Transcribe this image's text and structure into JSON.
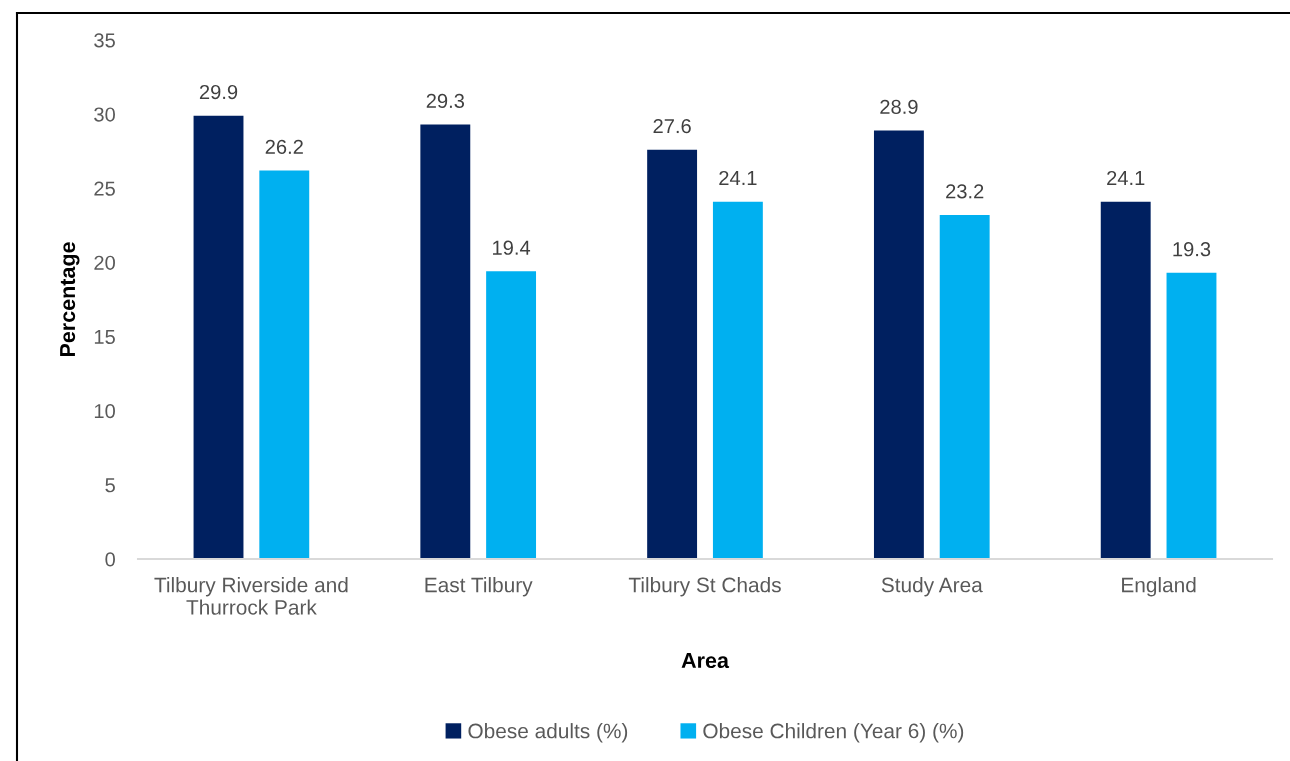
{
  "chart_data": {
    "type": "bar",
    "xlabel": "Area",
    "ylabel": "Percentage",
    "categories": [
      "Tilbury Riverside and\nThurrock Park",
      "East Tilbury",
      "Tilbury St Chads",
      "Study Area",
      "England"
    ],
    "series": [
      {
        "name": "Obese adults (%)",
        "color": "#002060",
        "values": [
          29.9,
          29.3,
          27.6,
          28.9,
          24.1
        ]
      },
      {
        "name": "Obese Children (Year 6) (%)",
        "color": "#00b0f0",
        "values": [
          26.2,
          19.4,
          24.1,
          23.2,
          19.3
        ]
      }
    ],
    "ylim": [
      0,
      35
    ],
    "yticks": [
      0,
      5,
      10,
      15,
      20,
      25,
      30,
      35
    ],
    "data_labels": true,
    "legend": "bottom",
    "grid": false
  }
}
